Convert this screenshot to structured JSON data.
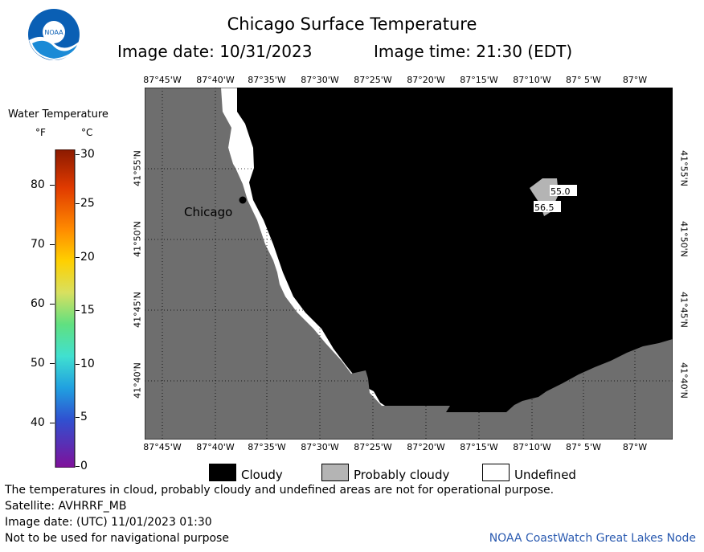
{
  "title": "Chicago Surface Temperature",
  "subtitle_date": "Image date: 10/31/2023",
  "subtitle_time": "Image time: 21:30 (EDT)",
  "logo_text": "NOAA",
  "scale": {
    "title": "Water Temperature",
    "unit_f": "°F",
    "unit_c": "°C",
    "f_ticks": [
      "80",
      "70",
      "60",
      "50",
      "40"
    ],
    "c_ticks": [
      "30",
      "25",
      "20",
      "15",
      "10",
      "5",
      "0"
    ]
  },
  "map": {
    "lon_labels": [
      "87°45'W",
      "87°40'W",
      "87°35'W",
      "87°30'W",
      "87°25'W",
      "87°20'W",
      "87°15'W",
      "87°10'W",
      "87° 5'W",
      "87°W"
    ],
    "lat_labels": [
      "41°55'N",
      "41°50'N",
      "41°45'N",
      "41°40'N"
    ],
    "city_label": "Chicago",
    "readings": [
      "55.0",
      "56.5"
    ],
    "colors": {
      "land": "#6e6e6e",
      "cloud": "#000000",
      "probably_cloudy": "#b4b4b4",
      "undefined": "#ffffff"
    }
  },
  "legend": {
    "cloudy": "Cloudy",
    "probably_cloudy": "Probably cloudy",
    "undefined": "Undefined"
  },
  "notes": {
    "disclaimer": "The temperatures in cloud, probably cloudy and undefined areas are not for operational purpose.",
    "satellite": "Satellite: AVHRRF_MB",
    "utc_date": "Image date: (UTC) 11/01/2023  01:30",
    "nav": "Not to be used for navigational purpose",
    "credit": "NOAA CoastWatch Great Lakes Node"
  }
}
